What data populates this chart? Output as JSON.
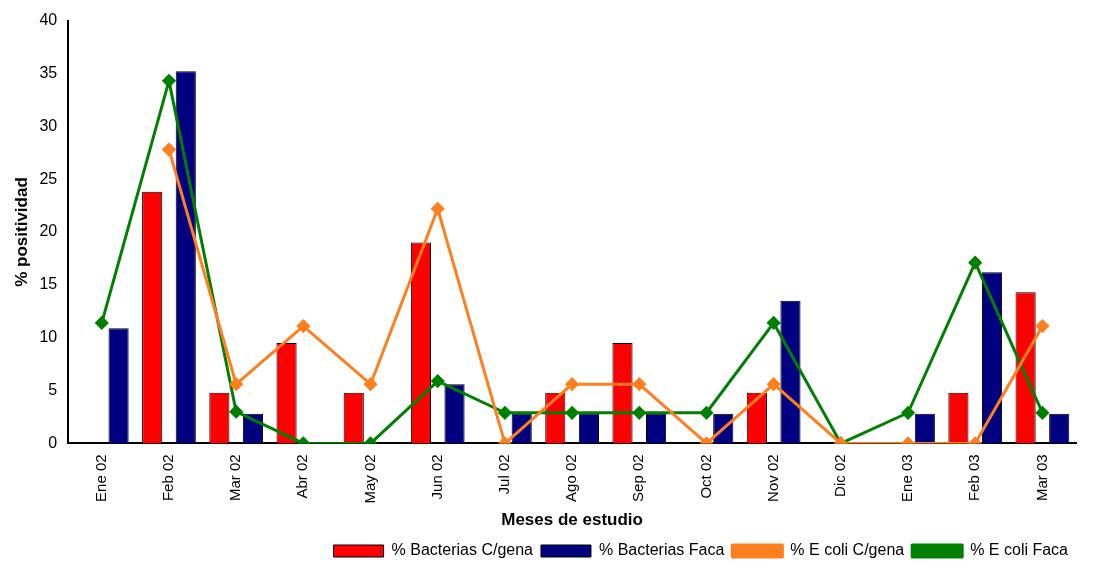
{
  "chart_data": {
    "type": "bar",
    "xlabel": "Meses de estudio",
    "ylabel": "% positividad",
    "categories": [
      "Ene 02",
      "Feb 02",
      "Mar 02",
      "Abr 02",
      "May 02",
      "Jun 02",
      "Jul 02",
      "Ago 02",
      "Sep 02",
      "Oct 02",
      "Nov 02",
      "Dic 02",
      "Ene 03",
      "Feb 03",
      "Mar 03"
    ],
    "series": [
      {
        "name": "% Bacterias C/gena",
        "color": "#ff0000",
        "values": [
          0,
          23.8,
          4.8,
          9.5,
          4.8,
          19,
          0,
          4.8,
          9.5,
          0,
          4.8,
          0,
          0,
          4.8,
          14.3
        ]
      },
      {
        "name": "% Bacterias Faca",
        "color": "#000080",
        "values": [
          10.9,
          35.2,
          2.8,
          0,
          0,
          5.6,
          2.8,
          2.8,
          2.8,
          2.8,
          13.5,
          0,
          2.8,
          16.2,
          2.8
        ]
      },
      {
        "name": "% E coli C/gena",
        "type": "line",
        "color": "#ff7f1e",
        "values": [
          null,
          27.8,
          5.6,
          11.1,
          5.6,
          22.2,
          0,
          5.6,
          5.6,
          0,
          5.6,
          0,
          0,
          0,
          11.1
        ]
      },
      {
        "name": "% E coli Faca",
        "type": "line",
        "color": "#008000",
        "values": [
          11.4,
          34.3,
          3,
          0,
          0,
          5.9,
          2.9,
          2.9,
          2.9,
          2.9,
          11.4,
          0,
          2.9,
          17.1,
          2.9
        ]
      }
    ],
    "ylim": [
      0,
      40
    ],
    "yticks": [
      0,
      5,
      10,
      15,
      20,
      25,
      30,
      35,
      40
    ],
    "legend": "bottom right",
    "marker": "diamond"
  }
}
